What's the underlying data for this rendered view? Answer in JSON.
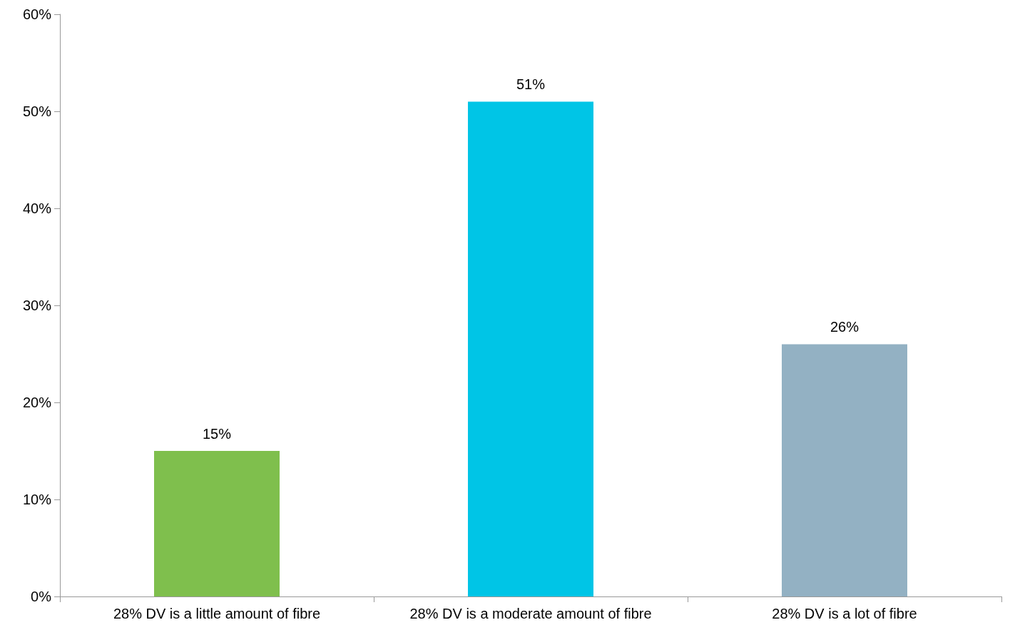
{
  "chart_data": {
    "type": "bar",
    "categories": [
      "28% DV is a little amount of fibre",
      "28% DV is a moderate amount of fibre",
      "28% DV is a lot of fibre"
    ],
    "values": [
      15,
      51,
      26
    ],
    "colors": [
      "#7fbf4d",
      "#00c5e6",
      "#93b1c3"
    ],
    "value_labels": [
      "15%",
      "51%",
      "26%"
    ],
    "ylim": [
      0,
      60
    ],
    "yticks": [
      {
        "value": 0,
        "label": "0%"
      },
      {
        "value": 10,
        "label": "10%"
      },
      {
        "value": 20,
        "label": "20%"
      },
      {
        "value": 30,
        "label": "30%"
      },
      {
        "value": 40,
        "label": "40%"
      },
      {
        "value": 50,
        "label": "50%"
      },
      {
        "value": 60,
        "label": "60%"
      }
    ],
    "grid": false
  }
}
